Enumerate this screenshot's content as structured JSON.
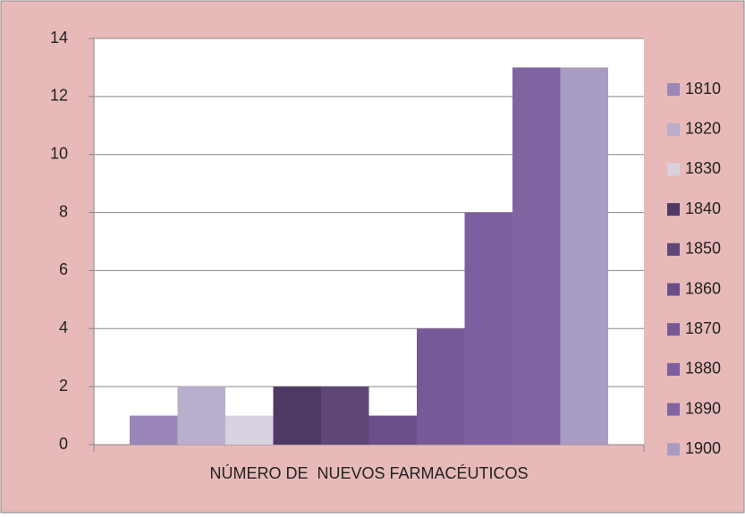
{
  "chart_data": {
    "type": "bar",
    "categories": [
      "NÚMERO DE  NUEVOS FARMACÉUTICOS"
    ],
    "series": [
      {
        "name": "1810",
        "color": "#9a86b8",
        "values": [
          1
        ]
      },
      {
        "name": "1820",
        "color": "#b9aecb",
        "values": [
          2
        ]
      },
      {
        "name": "1830",
        "color": "#d8d1e0",
        "values": [
          1
        ]
      },
      {
        "name": "1840",
        "color": "#4f3a66",
        "values": [
          2
        ]
      },
      {
        "name": "1850",
        "color": "#5e4679",
        "values": [
          2
        ]
      },
      {
        "name": "1860",
        "color": "#6b4f8a",
        "values": [
          1
        ]
      },
      {
        "name": "1870",
        "color": "#765a97",
        "values": [
          4
        ]
      },
      {
        "name": "1880",
        "color": "#7d5ea0",
        "values": [
          8
        ]
      },
      {
        "name": "1890",
        "color": "#8064a2",
        "values": [
          13
        ]
      },
      {
        "name": "1900",
        "color": "#a99cc2",
        "values": [
          13
        ]
      }
    ],
    "ylim": [
      0,
      14
    ],
    "yticks": [
      0,
      2,
      4,
      6,
      8,
      10,
      12,
      14
    ],
    "grid": true,
    "legend": "right"
  }
}
